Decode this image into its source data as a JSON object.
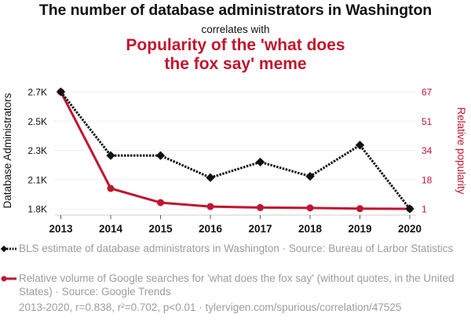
{
  "header": {
    "title": "The number of database administrators in Washington",
    "subtitle": "correlates with",
    "title2": "Popularity of the 'what does the fox say' meme"
  },
  "colors": {
    "series1": "#111111",
    "series2": "#c0162e",
    "muted_text": "#9c9c9c",
    "grid": "#f0f0f0"
  },
  "chart_data": {
    "type": "line",
    "title": "The number of database administrators in Washington correlates with Popularity of the 'what does the fox say' meme",
    "x": [
      2013,
      2014,
      2015,
      2016,
      2017,
      2018,
      2019,
      2020
    ],
    "xlabel": "",
    "x_tick_labels": [
      "2013",
      "2014",
      "2015",
      "2016",
      "2017",
      "2018",
      "2019",
      "2020"
    ],
    "left_axis": {
      "label": "Database Administrators",
      "range": [
        1800,
        2700
      ],
      "tick_labels": [
        "2.7K",
        "2.5K",
        "2.3K",
        "2.1K",
        "1.8K"
      ]
    },
    "right_axis": {
      "label": "Relative popularity",
      "range": [
        1,
        67
      ],
      "tick_labels": [
        "67",
        "51",
        "34",
        "18",
        "1"
      ]
    },
    "grid": true,
    "series": [
      {
        "name": "BLS estimate of database administrators in Washington · Source: Bureau of Larbor Statistics",
        "axis": "left",
        "style": "dotted",
        "marker": "diamond",
        "color": "#111111",
        "values": [
          2700,
          2210,
          2210,
          2040,
          2160,
          2050,
          2290,
          1800
        ]
      },
      {
        "name": "Relative volume of Google searches for 'what does the fox say' (without quotes, in the United States) · Source: Google Trends",
        "axis": "right",
        "style": "solid",
        "marker": "circle",
        "color": "#c0162e",
        "values": [
          67,
          12.5,
          4.5,
          2.3,
          1.7,
          1.5,
          1.1,
          1
        ]
      }
    ],
    "legend_placement": "bottom"
  },
  "legend": [
    {
      "text": "BLS estimate of database administrators in Washington · Source: Bureau of Larbor Statistics"
    },
    {
      "text": "Relative volume of Google searches for 'what does the fox say' (without quotes, in the United States) · Source: Google Trends"
    }
  ],
  "footer": {
    "stats": "2013-2020, r=0.838, r²=0.702, p<0.01 · tylervigen.com/spurious/correlation/47525"
  }
}
